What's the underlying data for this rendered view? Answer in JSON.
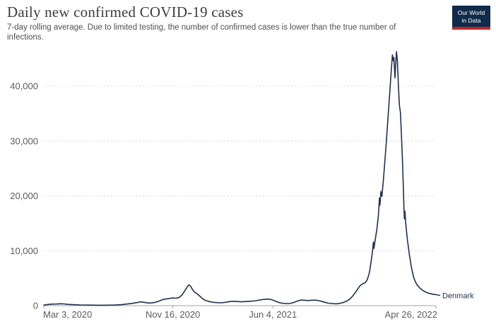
{
  "header": {
    "title": "Daily new confirmed COVID-19 cases",
    "subtitle": "7-day rolling average. Due to limited testing, the number of confirmed cases is lower than the true number of infections.",
    "logo": {
      "line1": "Our World",
      "line2": "in Data",
      "bg_color": "#102a4a",
      "accent_color": "#bc2725"
    }
  },
  "chart_data": {
    "type": "line",
    "title": "Daily new confirmed COVID-19 cases",
    "subtitle": "7-day rolling average. Due to limited testing, the number of confirmed cases is lower than the true number of infections.",
    "xlabel": "",
    "ylabel": "",
    "grid": "horizontal-dotted",
    "legend_position": "end-of-line",
    "x_range": [
      "2020-03-03",
      "2022-04-26"
    ],
    "ylim": [
      0,
      46500
    ],
    "yticks": [
      {
        "value": 0,
        "label": "0"
      },
      {
        "value": 10000,
        "label": "10,000"
      },
      {
        "value": 20000,
        "label": "20,000"
      },
      {
        "value": 30000,
        "label": "30,000"
      },
      {
        "value": 40000,
        "label": "40,000"
      }
    ],
    "xticks": [
      {
        "date": "2020-03-03",
        "label": "Mar 3, 2020",
        "anchor": "start"
      },
      {
        "date": "2020-11-16",
        "label": "Nov 16, 2020",
        "anchor": "middle"
      },
      {
        "date": "2021-06-04",
        "label": "Jun 4, 2021",
        "anchor": "middle"
      },
      {
        "date": "2022-04-26",
        "label": "Apr 26, 2022",
        "anchor": "end"
      }
    ],
    "colors": {
      "line": "#1e304f",
      "grid": "#dcdcdc",
      "axis": "#a3a3a3",
      "tick_text": "#5b5b5b"
    },
    "series": [
      {
        "name": "Denmark",
        "color": "#1e304f",
        "points": [
          [
            "2020-03-03",
            100
          ],
          [
            "2020-03-12",
            220
          ],
          [
            "2020-03-20",
            280
          ],
          [
            "2020-03-28",
            300
          ],
          [
            "2020-04-05",
            350
          ],
          [
            "2020-04-12",
            320
          ],
          [
            "2020-04-20",
            230
          ],
          [
            "2020-05-01",
            180
          ],
          [
            "2020-05-15",
            130
          ],
          [
            "2020-06-01",
            100
          ],
          [
            "2020-06-20",
            80
          ],
          [
            "2020-07-10",
            90
          ],
          [
            "2020-07-25",
            120
          ],
          [
            "2020-08-05",
            180
          ],
          [
            "2020-08-15",
            280
          ],
          [
            "2020-08-25",
            400
          ],
          [
            "2020-09-05",
            550
          ],
          [
            "2020-09-12",
            700
          ],
          [
            "2020-09-20",
            600
          ],
          [
            "2020-09-28",
            480
          ],
          [
            "2020-10-05",
            500
          ],
          [
            "2020-10-12",
            600
          ],
          [
            "2020-10-20",
            850
          ],
          [
            "2020-10-28",
            1150
          ],
          [
            "2020-11-05",
            1250
          ],
          [
            "2020-11-12",
            1350
          ],
          [
            "2020-11-16",
            1400
          ],
          [
            "2020-11-22",
            1350
          ],
          [
            "2020-11-28",
            1450
          ],
          [
            "2020-12-04",
            1900
          ],
          [
            "2020-12-09",
            2600
          ],
          [
            "2020-12-14",
            3300
          ],
          [
            "2020-12-18",
            3800
          ],
          [
            "2020-12-21",
            3600
          ],
          [
            "2020-12-25",
            3000
          ],
          [
            "2020-12-29",
            2500
          ],
          [
            "2021-01-03",
            2200
          ],
          [
            "2021-01-08",
            1800
          ],
          [
            "2021-01-14",
            1300
          ],
          [
            "2021-01-20",
            950
          ],
          [
            "2021-01-28",
            750
          ],
          [
            "2021-02-05",
            600
          ],
          [
            "2021-02-12",
            550
          ],
          [
            "2021-02-20",
            520
          ],
          [
            "2021-03-01",
            600
          ],
          [
            "2021-03-10",
            750
          ],
          [
            "2021-03-20",
            800
          ],
          [
            "2021-04-01",
            700
          ],
          [
            "2021-04-10",
            750
          ],
          [
            "2021-04-20",
            800
          ],
          [
            "2021-05-01",
            900
          ],
          [
            "2021-05-10",
            1050
          ],
          [
            "2021-05-18",
            1150
          ],
          [
            "2021-05-25",
            1200
          ],
          [
            "2021-06-01",
            1100
          ],
          [
            "2021-06-08",
            850
          ],
          [
            "2021-06-15",
            600
          ],
          [
            "2021-06-22",
            450
          ],
          [
            "2021-07-01",
            380
          ],
          [
            "2021-07-08",
            400
          ],
          [
            "2021-07-15",
            550
          ],
          [
            "2021-07-22",
            800
          ],
          [
            "2021-07-29",
            1000
          ],
          [
            "2021-08-05",
            1000
          ],
          [
            "2021-08-12",
            930
          ],
          [
            "2021-08-19",
            980
          ],
          [
            "2021-08-26",
            1000
          ],
          [
            "2021-09-02",
            950
          ],
          [
            "2021-09-09",
            800
          ],
          [
            "2021-09-16",
            600
          ],
          [
            "2021-09-23",
            450
          ],
          [
            "2021-10-01",
            380
          ],
          [
            "2021-10-08",
            340
          ],
          [
            "2021-10-15",
            400
          ],
          [
            "2021-10-22",
            550
          ],
          [
            "2021-10-29",
            800
          ],
          [
            "2021-11-05",
            1200
          ],
          [
            "2021-11-11",
            1800
          ],
          [
            "2021-11-16",
            2400
          ],
          [
            "2021-11-21",
            3100
          ],
          [
            "2021-11-26",
            3700
          ],
          [
            "2021-12-01",
            4000
          ],
          [
            "2021-12-06",
            4200
          ],
          [
            "2021-12-10",
            4800
          ],
          [
            "2021-12-14",
            6000
          ],
          [
            "2021-12-17",
            7800
          ],
          [
            "2021-12-20",
            9800
          ],
          [
            "2021-12-22",
            11600
          ],
          [
            "2021-12-23",
            10400
          ],
          [
            "2021-12-26",
            12200
          ],
          [
            "2021-12-29",
            14000
          ],
          [
            "2022-01-01",
            16500
          ],
          [
            "2022-01-03",
            19600
          ],
          [
            "2022-01-04",
            18300
          ],
          [
            "2022-01-06",
            20800
          ],
          [
            "2022-01-08",
            19900
          ],
          [
            "2022-01-11",
            23000
          ],
          [
            "2022-01-14",
            26500
          ],
          [
            "2022-01-17",
            30000
          ],
          [
            "2022-01-20",
            34000
          ],
          [
            "2022-01-23",
            38000
          ],
          [
            "2022-01-26",
            42000
          ],
          [
            "2022-01-29",
            45700
          ],
          [
            "2022-01-31",
            44600
          ],
          [
            "2022-02-01",
            45200
          ],
          [
            "2022-02-03",
            41500
          ],
          [
            "2022-02-06",
            46300
          ],
          [
            "2022-02-08",
            44500
          ],
          [
            "2022-02-10",
            40000
          ],
          [
            "2022-02-12",
            36500
          ],
          [
            "2022-02-14",
            35200
          ],
          [
            "2022-02-16",
            31000
          ],
          [
            "2022-02-18",
            26500
          ],
          [
            "2022-02-20",
            21000
          ],
          [
            "2022-02-21",
            17800
          ],
          [
            "2022-02-22",
            15800
          ],
          [
            "2022-02-23",
            17200
          ],
          [
            "2022-02-25",
            14600
          ],
          [
            "2022-02-28",
            12000
          ],
          [
            "2022-03-04",
            9200
          ],
          [
            "2022-03-08",
            7000
          ],
          [
            "2022-03-12",
            5300
          ],
          [
            "2022-03-16",
            4300
          ],
          [
            "2022-03-20",
            3700
          ],
          [
            "2022-03-25",
            3200
          ],
          [
            "2022-03-30",
            2800
          ],
          [
            "2022-04-05",
            2500
          ],
          [
            "2022-04-12",
            2250
          ],
          [
            "2022-04-19",
            2100
          ],
          [
            "2022-04-26",
            2000
          ]
        ]
      }
    ]
  }
}
